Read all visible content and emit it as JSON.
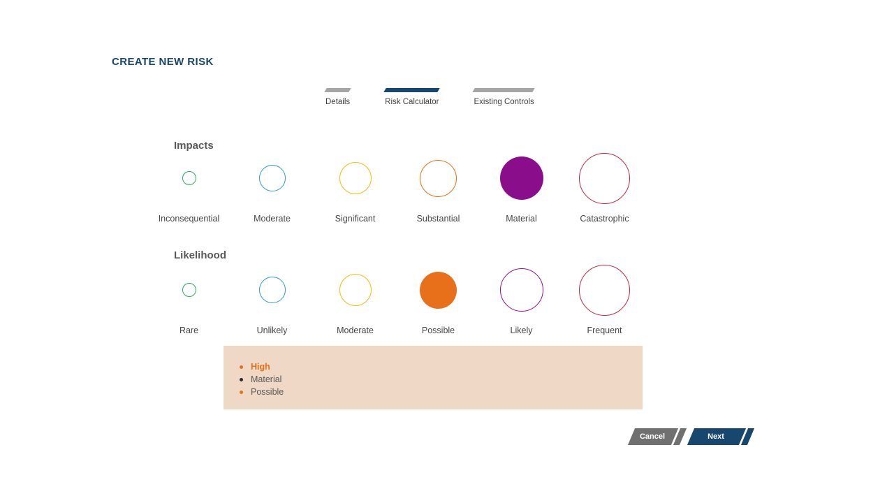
{
  "page": {
    "title": "CREATE NEW RISK"
  },
  "colors": {
    "title_blue": "#17466F",
    "tab_active": "#17466F",
    "tab_inactive": "#A6A6A6",
    "summary_background": "#EFD8C5",
    "cancel_gray": "#707070",
    "next_blue": "#17466F"
  },
  "tabs": [
    {
      "label": "Details",
      "active": false
    },
    {
      "label": "Risk Calculator",
      "active": true
    },
    {
      "label": "Existing Controls",
      "active": false
    }
  ],
  "impacts": {
    "heading": "Impacts",
    "options": [
      {
        "label": "Inconsequential",
        "color": "#27AE60",
        "size": 20,
        "selected": false
      },
      {
        "label": "Moderate",
        "color": "#2E9BCB",
        "size": 38,
        "selected": false
      },
      {
        "label": "Significant",
        "color": "#E7C21E",
        "size": 46,
        "selected": false
      },
      {
        "label": "Substantial",
        "color": "#E8701A",
        "size": 53,
        "selected": false
      },
      {
        "label": "Material",
        "color": "#8A0E8C",
        "size": 62,
        "selected": true
      },
      {
        "label": "Catastrophic",
        "color": "#C4243C",
        "size": 73,
        "selected": false
      }
    ]
  },
  "likelihood": {
    "heading": "Likelihood",
    "options": [
      {
        "label": "Rare",
        "color": "#27AE60",
        "size": 20,
        "selected": false
      },
      {
        "label": "Unlikely",
        "color": "#2E9BCB",
        "size": 38,
        "selected": false
      },
      {
        "label": "Moderate",
        "color": "#E7C21E",
        "size": 46,
        "selected": false
      },
      {
        "label": "Possible",
        "color": "#E8701A",
        "size": 53,
        "selected": true
      },
      {
        "label": "Likely",
        "color": "#8E0E90",
        "size": 62,
        "selected": false
      },
      {
        "label": "Frequent",
        "color": "#C4243C",
        "size": 73,
        "selected": false
      }
    ]
  },
  "summary": {
    "items": [
      {
        "label": "High",
        "bullet_color": "#E8701A",
        "text_color": "#E8701A",
        "bold": true
      },
      {
        "label": "Material",
        "bullet_color": "#2B2B2B",
        "text_color": "#595959",
        "bold": false
      },
      {
        "label": "Possible",
        "bullet_color": "#E8701A",
        "text_color": "#595959",
        "bold": false
      }
    ]
  },
  "footer": {
    "cancel_label": "Cancel",
    "next_label": "Next"
  }
}
